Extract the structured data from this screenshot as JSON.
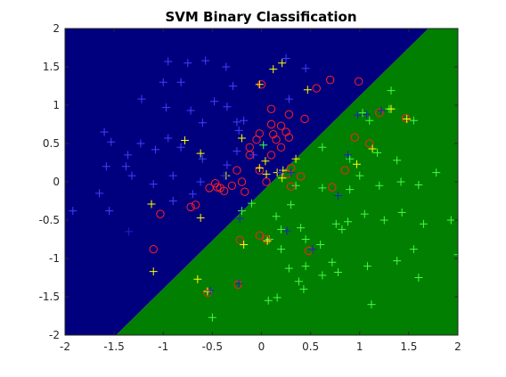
{
  "chart_data": {
    "type": "scatter",
    "title": "SVM Binary Classification",
    "xlabel": "",
    "ylabel": "",
    "xlim": [
      -2,
      2
    ],
    "ylim": [
      -2,
      2
    ],
    "xticks": [
      -2,
      -1.5,
      -1,
      -0.5,
      0,
      0.5,
      1,
      1.5,
      2
    ],
    "yticks": [
      -2,
      -1.5,
      -1,
      -0.5,
      0,
      0.5,
      1,
      1.5,
      2
    ],
    "xtick_labels": [
      "-2",
      "-1.5",
      "-1",
      "-0.5",
      "0",
      "0.5",
      "1",
      "1.5",
      "2"
    ],
    "ytick_labels": [
      "-2",
      "-1.5",
      "-1",
      "-0.5",
      "0",
      "0.5",
      "1",
      "1.5",
      "2"
    ],
    "grid": false,
    "decision_boundary": {
      "points": [
        [
          -1.48,
          -2
        ],
        [
          1.7,
          2
        ]
      ],
      "region_upper_left_color": "#00007f",
      "region_lower_right_color": "#007f00"
    },
    "series": [
      {
        "marker": "plus",
        "color": "#4040ff",
        "points": [
          [
            -0.95,
            1.57
          ],
          [
            -0.75,
            1.55
          ],
          [
            -0.57,
            1.58
          ],
          [
            -0.36,
            1.5
          ],
          [
            -0.82,
            1.3
          ],
          [
            -1.0,
            1.3
          ],
          [
            -1.22,
            1.08
          ],
          [
            -0.97,
            0.97
          ],
          [
            -0.72,
            0.93
          ],
          [
            -0.48,
            1.05
          ],
          [
            -0.29,
            1.25
          ],
          [
            -0.35,
            0.98
          ],
          [
            -0.25,
            0.78
          ],
          [
            -0.23,
            0.67
          ],
          [
            -0.6,
            0.77
          ],
          [
            -0.95,
            0.57
          ],
          [
            -1.23,
            0.5
          ],
          [
            -1.53,
            0.52
          ],
          [
            -1.36,
            0.35
          ],
          [
            -1.08,
            0.42
          ],
          [
            -0.82,
            0.45
          ],
          [
            -0.6,
            0.3
          ],
          [
            -0.25,
            0.4
          ],
          [
            -1.58,
            0.2
          ],
          [
            -1.38,
            0.2
          ],
          [
            -1.32,
            0.08
          ],
          [
            -1.65,
            -0.15
          ],
          [
            -1.92,
            -0.38
          ],
          [
            -1.55,
            -0.38
          ],
          [
            -1.1,
            -0.03
          ],
          [
            -0.9,
            -0.25
          ],
          [
            -0.9,
            0.08
          ],
          [
            -0.62,
            0.0
          ],
          [
            -0.7,
            -0.16
          ],
          [
            -0.35,
            0.22
          ],
          [
            -0.08,
            0.35
          ],
          [
            -0.18,
            0.8
          ],
          [
            0.28,
            1.08
          ],
          [
            0.45,
            1.48
          ],
          [
            0.25,
            1.61
          ],
          [
            -1.6,
            0.65
          ]
        ]
      },
      {
        "marker": "plus",
        "color": "#40ff40",
        "points": [
          [
            1.32,
            1.19
          ],
          [
            1.03,
            0.9
          ],
          [
            1.1,
            0.8
          ],
          [
            1.3,
            0.95
          ],
          [
            1.55,
            0.8
          ],
          [
            1.18,
            0.38
          ],
          [
            0.9,
            0.3
          ],
          [
            1.0,
            0.08
          ],
          [
            1.42,
            0.0
          ],
          [
            1.6,
            -0.04
          ],
          [
            1.78,
            0.12
          ],
          [
            0.9,
            -0.1
          ],
          [
            0.62,
            -0.08
          ],
          [
            0.35,
            -0.05
          ],
          [
            0.3,
            -0.3
          ],
          [
            0.76,
            -0.55
          ],
          [
            0.88,
            -0.52
          ],
          [
            1.05,
            -0.42
          ],
          [
            1.25,
            -0.5
          ],
          [
            1.43,
            -0.4
          ],
          [
            1.65,
            -0.55
          ],
          [
            1.93,
            -0.5
          ],
          [
            2.0,
            -0.95
          ],
          [
            1.55,
            -0.88
          ],
          [
            1.38,
            -1.03
          ],
          [
            1.08,
            -1.1
          ],
          [
            0.72,
            -1.05
          ],
          [
            0.78,
            -1.18
          ],
          [
            0.45,
            -1.1
          ],
          [
            0.38,
            -1.3
          ],
          [
            0.43,
            -1.4
          ],
          [
            0.28,
            -1.13
          ],
          [
            0.62,
            -1.22
          ],
          [
            0.2,
            -0.88
          ],
          [
            0.08,
            -0.75
          ],
          [
            0.4,
            -0.6
          ],
          [
            0.6,
            -0.82
          ],
          [
            0.15,
            -0.45
          ],
          [
            -0.1,
            -0.28
          ],
          [
            0.62,
            0.45
          ],
          [
            0.02,
            0.48
          ],
          [
            0.16,
            -1.51
          ],
          [
            0.07,
            -1.55
          ],
          [
            1.12,
            -1.6
          ],
          [
            1.6,
            -1.25
          ],
          [
            -0.5,
            -1.77
          ],
          [
            -0.2,
            -0.38
          ],
          [
            0.2,
            -0.62
          ],
          [
            0.45,
            -0.75
          ],
          [
            0.82,
            -0.62
          ],
          [
            1.2,
            -0.05
          ],
          [
            1.38,
            0.28
          ]
        ]
      },
      {
        "marker": "circle",
        "color": "#ff2020",
        "points": [
          [
            -0.72,
            -0.33
          ],
          [
            -0.67,
            -0.3
          ],
          [
            -0.45,
            -0.07
          ],
          [
            -0.42,
            -0.08
          ],
          [
            -0.47,
            -0.02
          ],
          [
            -0.53,
            -0.08
          ],
          [
            -0.3,
            -0.05
          ],
          [
            -0.2,
            0.0
          ],
          [
            -0.17,
            -0.13
          ],
          [
            -0.25,
            0.15
          ],
          [
            -0.12,
            0.35
          ],
          [
            -0.05,
            0.55
          ],
          [
            -0.02,
            0.63
          ],
          [
            0.1,
            0.75
          ],
          [
            0.2,
            0.73
          ],
          [
            0.25,
            0.65
          ],
          [
            0.28,
            0.58
          ],
          [
            0.1,
            0.35
          ],
          [
            0.15,
            0.55
          ],
          [
            0.2,
            0.45
          ],
          [
            0.28,
            0.88
          ],
          [
            0.3,
            0.18
          ],
          [
            0.3,
            -0.06
          ],
          [
            0.4,
            0.07
          ],
          [
            0.7,
            1.33
          ],
          [
            0.99,
            1.31
          ],
          [
            0.56,
            1.22
          ],
          [
            0.44,
            0.82
          ],
          [
            1.2,
            0.9
          ],
          [
            1.47,
            0.83
          ],
          [
            0.95,
            0.58
          ],
          [
            1.1,
            0.5
          ],
          [
            0.85,
            0.15
          ],
          [
            0.72,
            -0.07
          ],
          [
            0.48,
            -0.9
          ],
          [
            -0.22,
            -0.76
          ],
          [
            -0.02,
            -0.7
          ],
          [
            -1.03,
            -0.42
          ],
          [
            -1.1,
            -0.88
          ],
          [
            -0.55,
            -1.45
          ],
          [
            -0.24,
            -1.34
          ],
          [
            0.1,
            0.95
          ],
          [
            -0.38,
            -0.12
          ],
          [
            -0.02,
            0.15
          ],
          [
            0.05,
            0.0
          ],
          [
            -0.12,
            0.45
          ],
          [
            0.12,
            0.62
          ],
          [
            0.26,
            0.1
          ],
          [
            0.05,
            -0.75
          ],
          [
            0.0,
            1.27
          ]
        ]
      },
      {
        "marker": "plus",
        "color": "#ffff00",
        "points": [
          [
            -0.78,
            0.54
          ],
          [
            -0.62,
            0.37
          ],
          [
            -0.36,
            0.08
          ],
          [
            -0.2,
            0.57
          ],
          [
            -0.02,
            0.18
          ],
          [
            0.05,
            0.1
          ],
          [
            0.16,
            0.12
          ],
          [
            0.21,
            0.05
          ],
          [
            0.06,
            -0.77
          ],
          [
            -0.18,
            -0.82
          ],
          [
            -0.65,
            -1.27
          ],
          [
            -1.1,
            -1.17
          ],
          [
            -1.12,
            -0.29
          ],
          [
            -0.62,
            -0.47
          ],
          [
            -0.55,
            -1.43
          ],
          [
            0.21,
            1.55
          ],
          [
            0.12,
            1.47
          ],
          [
            -0.02,
            1.27
          ],
          [
            1.13,
            0.43
          ],
          [
            0.97,
            0.23
          ],
          [
            1.32,
            0.95
          ],
          [
            1.48,
            0.82
          ],
          [
            0.47,
            1.2
          ],
          [
            0.35,
            0.3
          ],
          [
            0.22,
            0.15
          ],
          [
            0.04,
            0.27
          ]
        ]
      },
      {
        "marker": "plus",
        "color": "#2020c0",
        "points": [
          [
            0.98,
            0.87
          ],
          [
            1.07,
            0.88
          ],
          [
            1.22,
            0.93
          ],
          [
            0.88,
            0.35
          ],
          [
            0.78,
            -0.18
          ],
          [
            0.26,
            -0.64
          ],
          [
            0.52,
            -0.88
          ],
          [
            -0.23,
            -1.33
          ],
          [
            -0.22,
            -0.48
          ],
          [
            -0.38,
            0.08
          ],
          [
            -0.52,
            -1.42
          ],
          [
            -1.35,
            -0.65
          ],
          [
            0.3,
            0.12
          ],
          [
            0.2,
            0.12
          ]
        ]
      }
    ]
  }
}
